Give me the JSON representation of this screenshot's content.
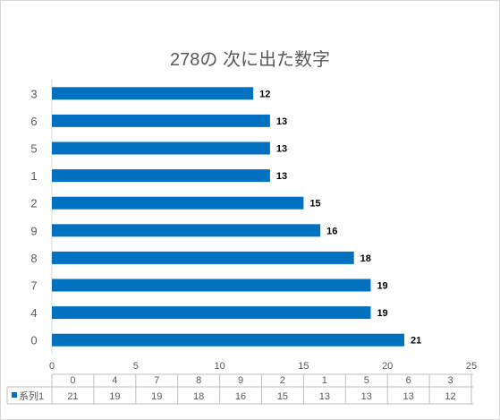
{
  "chart_data": {
    "type": "bar",
    "orientation": "horizontal",
    "title": "278の 次に出た数字",
    "categories": [
      "3",
      "6",
      "5",
      "1",
      "2",
      "9",
      "8",
      "7",
      "4",
      "0"
    ],
    "series": [
      {
        "name": "系列1",
        "values": [
          12,
          13,
          13,
          13,
          15,
          16,
          18,
          19,
          19,
          21
        ],
        "color": "#0070c0"
      }
    ],
    "xlim": [
      0,
      25
    ],
    "x_ticks": [
      0,
      5,
      10,
      15,
      20,
      25
    ],
    "data_labels": true,
    "gridlines": false,
    "data_table": {
      "headers": [
        "0",
        "4",
        "7",
        "8",
        "9",
        "2",
        "1",
        "5",
        "6",
        "3"
      ],
      "row_label": "系列1",
      "values": [
        "21",
        "19",
        "19",
        "18",
        "16",
        "15",
        "13",
        "13",
        "13",
        "12"
      ]
    }
  }
}
